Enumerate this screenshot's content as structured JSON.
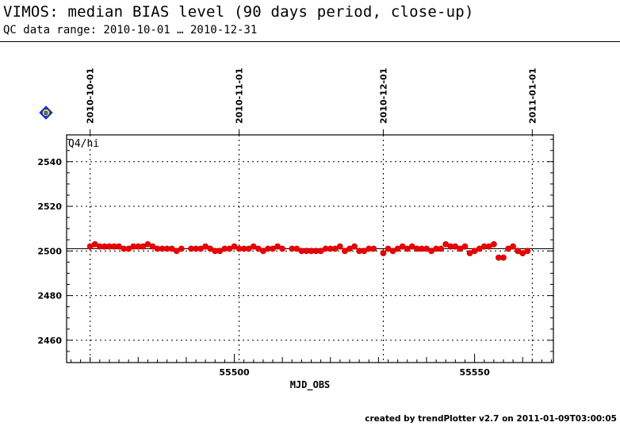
{
  "header": {
    "title": "VIMOS: median BIAS level (90 days period, close-up)",
    "subtitle": "QC data range: 2010-10-01 … 2010-12-31"
  },
  "footer": {
    "credit": "created by trendPlotter v2.7 on 2011-01-09T03:00:05"
  },
  "legend_marker": {
    "symbol": "B",
    "icon": "blue-diamond-icon",
    "fill_color": "#0a2fd8",
    "text_color": "#ffd400"
  },
  "chart_data": {
    "type": "scatter",
    "panel_label": "Q4/hi",
    "xlabel": "MJD_OBS",
    "ylabel": "",
    "xlim": [
      55465.1,
      55566.4
    ],
    "ylim": [
      2450,
      2552
    ],
    "x_ticks": [
      55500,
      55550
    ],
    "y_ticks": [
      2460,
      2480,
      2500,
      2520,
      2540
    ],
    "date_ticks": [
      {
        "label": "2010-10-01",
        "mjd": 55470
      },
      {
        "label": "2010-11-01",
        "mjd": 55501
      },
      {
        "label": "2010-12-01",
        "mjd": 55531
      },
      {
        "label": "2011-01-01",
        "mjd": 55562
      }
    ],
    "reference_line": 2501,
    "grid": true,
    "marker_color": "#ee0000",
    "series": [
      {
        "x": [
          55470,
          55471,
          55472,
          55473,
          55474,
          55475,
          55476,
          55477,
          55478,
          55479,
          55480,
          55481,
          55482,
          55483,
          55484,
          55485,
          55486,
          55487,
          55488,
          55489,
          55491,
          55492,
          55493,
          55494,
          55495,
          55496,
          55497,
          55498,
          55499,
          55500,
          55501,
          55502,
          55503,
          55504,
          55505,
          55506,
          55507,
          55508,
          55509,
          55510,
          55512,
          55513,
          55514,
          55515,
          55516,
          55517,
          55518,
          55519,
          55520,
          55521,
          55522,
          55523,
          55524,
          55525,
          55526,
          55527,
          55528,
          55529,
          55531,
          55532,
          55533,
          55534,
          55535,
          55536,
          55537,
          55538,
          55539,
          55540,
          55541,
          55542,
          55543,
          55544,
          55545,
          55546,
          55547,
          55548,
          55549,
          55550,
          55551,
          55552,
          55553,
          55554,
          55555,
          55556,
          55557,
          55558,
          55559,
          55560,
          55561
        ],
        "y": [
          2502,
          2503,
          2502,
          2502,
          2502,
          2502,
          2502,
          2501,
          2501,
          2502,
          2502,
          2502,
          2503,
          2502,
          2501,
          2501,
          2501,
          2501,
          2500,
          2501,
          2501,
          2501,
          2501,
          2502,
          2501,
          2500,
          2500,
          2501,
          2501,
          2502,
          2501,
          2501,
          2501,
          2502,
          2501,
          2500,
          2501,
          2501,
          2502,
          2501,
          2501,
          2501,
          2500,
          2500,
          2500,
          2500,
          2500,
          2501,
          2501,
          2501,
          2502,
          2500,
          2501,
          2502,
          2500,
          2500,
          2501,
          2501,
          2499,
          2501,
          2500,
          2501,
          2502,
          2501,
          2502,
          2501,
          2501,
          2501,
          2500,
          2501,
          2501,
          2503,
          2502,
          2502,
          2501,
          2502,
          2499,
          2500,
          2501,
          2502,
          2502,
          2503,
          2497,
          2497,
          2501,
          2502,
          2500,
          2499,
          2500
        ]
      }
    ]
  }
}
